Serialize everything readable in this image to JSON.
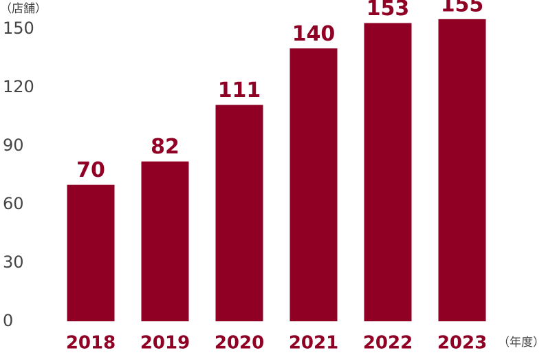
{
  "chart_data": {
    "type": "bar",
    "y_axis_label": "（店舗）",
    "x_axis_label": "（年度）",
    "categories": [
      "2018",
      "2019",
      "2020",
      "2021",
      "2022",
      "2023"
    ],
    "values": [
      70,
      82,
      111,
      140,
      153,
      155
    ],
    "color": "#900024",
    "ylim": [
      0,
      150
    ],
    "yticks": [
      0,
      30,
      60,
      90,
      120,
      150
    ],
    "grid": false
  }
}
